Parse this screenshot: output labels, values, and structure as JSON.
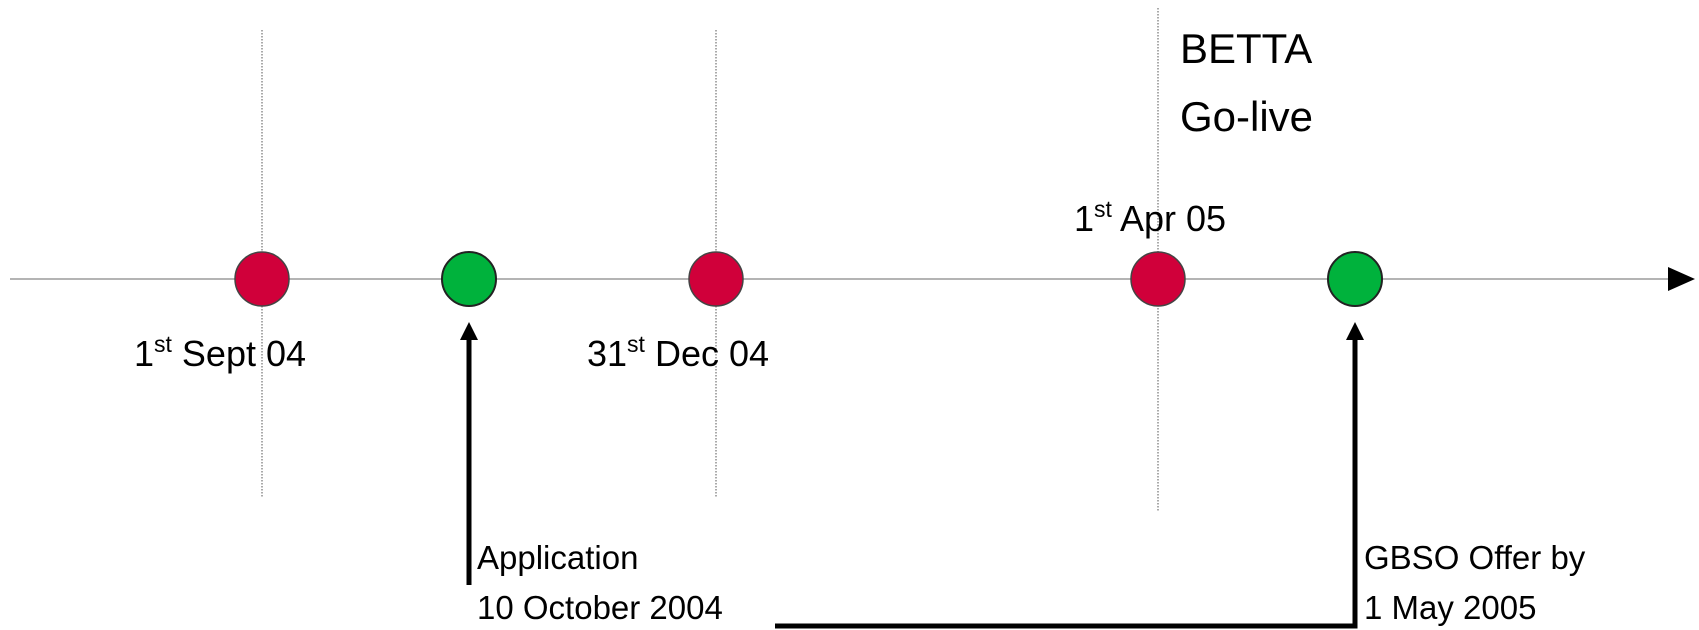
{
  "milestones": [
    {
      "id": "sept",
      "day": "1",
      "suffix": "st",
      "rest": " Sept 04",
      "color": "#d0003a"
    },
    {
      "id": "dec",
      "day": "31",
      "suffix": "st",
      "rest": " Dec 04",
      "color": "#d0003a"
    },
    {
      "id": "apr",
      "day": "1",
      "suffix": "st",
      "rest": " Apr 05",
      "color": "#d0003a"
    }
  ],
  "events": [
    {
      "id": "application",
      "line1": "Application",
      "line2": "10 October 2004",
      "color": "#00b23c"
    },
    {
      "id": "offer",
      "line1": "GBSO Offer by",
      "line2": "1 May 2005",
      "color": "#00b23c"
    }
  ],
  "betta": {
    "line1": "BETTA",
    "line2": "Go-live"
  }
}
